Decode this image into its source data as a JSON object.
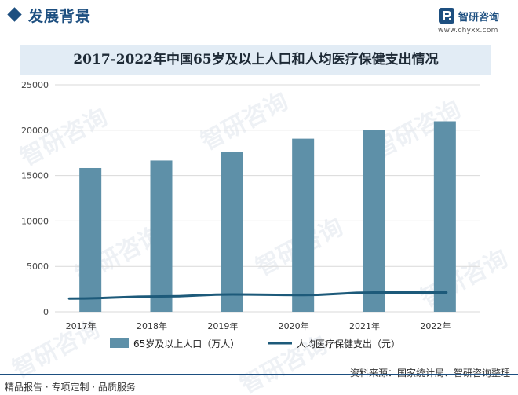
{
  "header": {
    "title": "发展背景",
    "logo_name": "智研咨询",
    "logo_url": "www.chyxx.com"
  },
  "watermark_text": "智研咨询",
  "chart_data": {
    "type": "bar",
    "title": "2017-2022年中国65岁及以上人口和人均医疗保健支出情况",
    "categories": [
      "2017年",
      "2018年",
      "2019年",
      "2020年",
      "2021年",
      "2022年"
    ],
    "series": [
      {
        "name": "65岁及以上人口（万人）",
        "type": "bar",
        "color": "#5e90a8",
        "values": [
          15831,
          16658,
          17603,
          19064,
          20056,
          20978
        ]
      },
      {
        "name": "人均医疗保健支出（元）",
        "type": "line",
        "color": "#1d5a7a",
        "values": [
          1451,
          1685,
          1902,
          1843,
          2115,
          2120
        ]
      }
    ],
    "yticks": [
      0,
      5000,
      10000,
      15000,
      20000,
      25000
    ],
    "ylim": [
      0,
      25000
    ],
    "grid": true,
    "legend": "bottom"
  },
  "footer": {
    "left": "精品报告 · 专项定制 · 品质服务",
    "source": "资料来源：国家统计局、智研咨询整理"
  }
}
